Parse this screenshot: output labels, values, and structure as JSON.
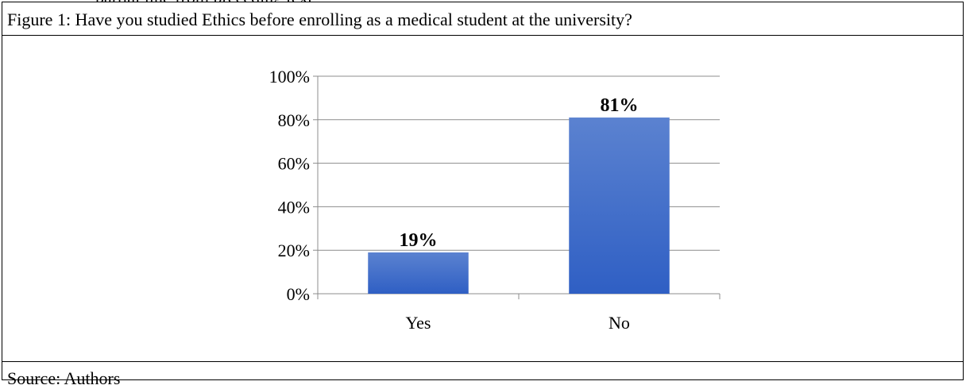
{
  "caption": "Figure 1: Have you studied Ethics before enrolling as a medical student at the university?",
  "source": "Source: Authors",
  "chart_data": {
    "type": "bar",
    "categories": [
      "Yes",
      "No"
    ],
    "values": [
      19,
      81
    ],
    "data_labels": [
      "19%",
      "81%"
    ],
    "y_ticks": [
      "0%",
      "20%",
      "40%",
      "60%",
      "80%",
      "100%"
    ],
    "ylim": [
      0,
      100
    ],
    "y_unit": "%",
    "grid": true,
    "legend": "none",
    "bar_color": "#4472C4"
  }
}
